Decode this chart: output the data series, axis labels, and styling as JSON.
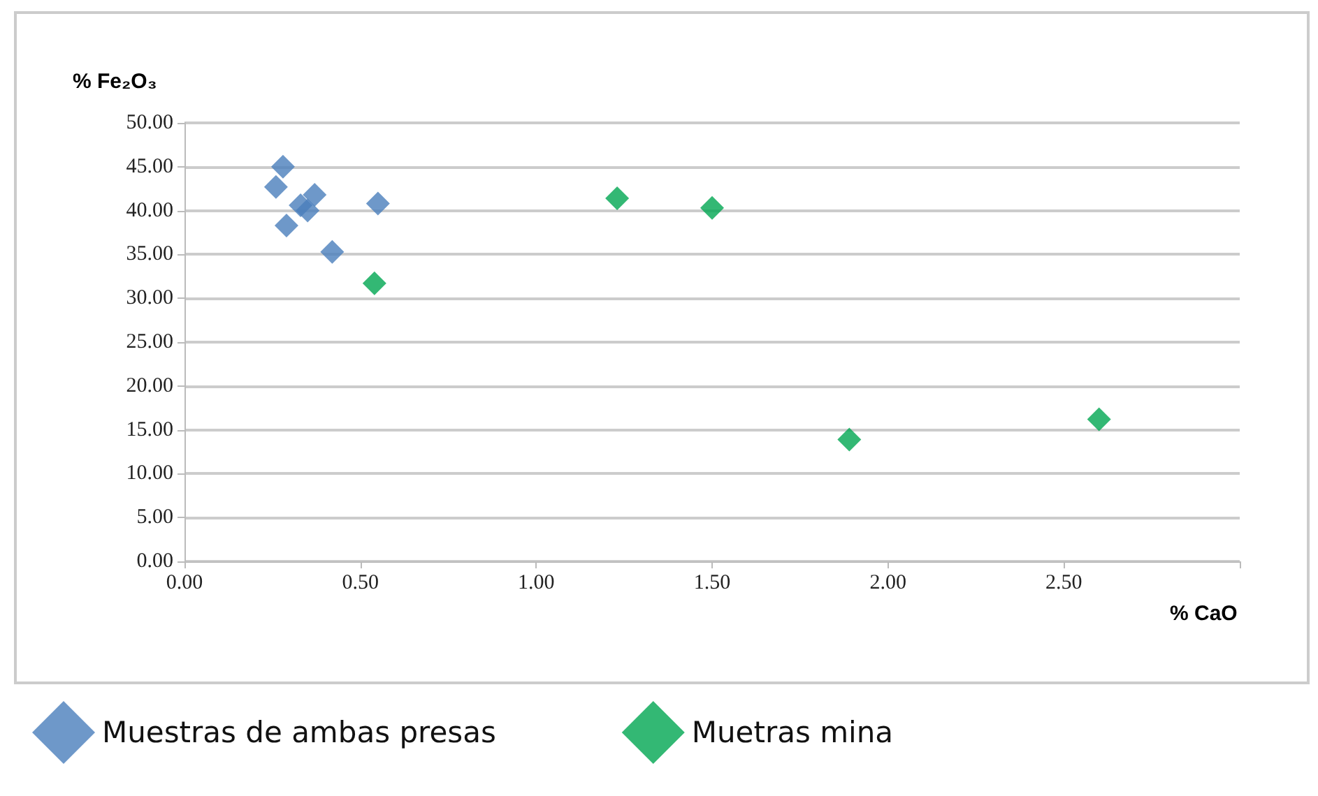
{
  "chart_data": {
    "type": "scatter",
    "xlabel": "% CaO",
    "ylabel": "% Fe₂O₃",
    "xlim": [
      0,
      3
    ],
    "xticks": [
      {
        "value": 0,
        "label": "0.00"
      },
      {
        "value": 0.5,
        "label": "0.50"
      },
      {
        "value": 1,
        "label": "1.00"
      },
      {
        "value": 1.5,
        "label": "1.50"
      },
      {
        "value": 2,
        "label": "2.00"
      },
      {
        "value": 2.5,
        "label": "2.50"
      },
      {
        "value": 3,
        "label": null
      }
    ],
    "ylim": [
      0,
      50
    ],
    "yticks": [
      {
        "value": 0,
        "label": "0.00"
      },
      {
        "value": 5,
        "label": "5.00"
      },
      {
        "value": 10,
        "label": "10.00"
      },
      {
        "value": 15,
        "label": "15.00"
      },
      {
        "value": 20,
        "label": "20.00"
      },
      {
        "value": 25,
        "label": "25.00"
      },
      {
        "value": 30,
        "label": "30.00"
      },
      {
        "value": 35,
        "label": "35.00"
      },
      {
        "value": 40,
        "label": "40.00"
      },
      {
        "value": 45,
        "label": "45.00"
      },
      {
        "value": 50,
        "label": "50.00"
      }
    ],
    "grid": "y",
    "legend": "bottom",
    "marker": "diamond",
    "series": [
      {
        "name": "Muestras de ambas presas",
        "color": "#4a7ebb",
        "x": [
          0.28,
          0.26,
          0.37,
          0.33,
          0.35,
          0.55,
          0.29,
          0.42
        ],
        "values": [
          45.0,
          42.7,
          41.8,
          40.6,
          40.0,
          40.8,
          38.3,
          35.3
        ]
      },
      {
        "name": "Muetras mina",
        "color": "#00a651",
        "x": [
          0.54,
          1.23,
          1.5,
          1.89,
          2.6
        ],
        "values": [
          31.7,
          41.4,
          40.3,
          13.9,
          16.2
        ]
      }
    ]
  }
}
